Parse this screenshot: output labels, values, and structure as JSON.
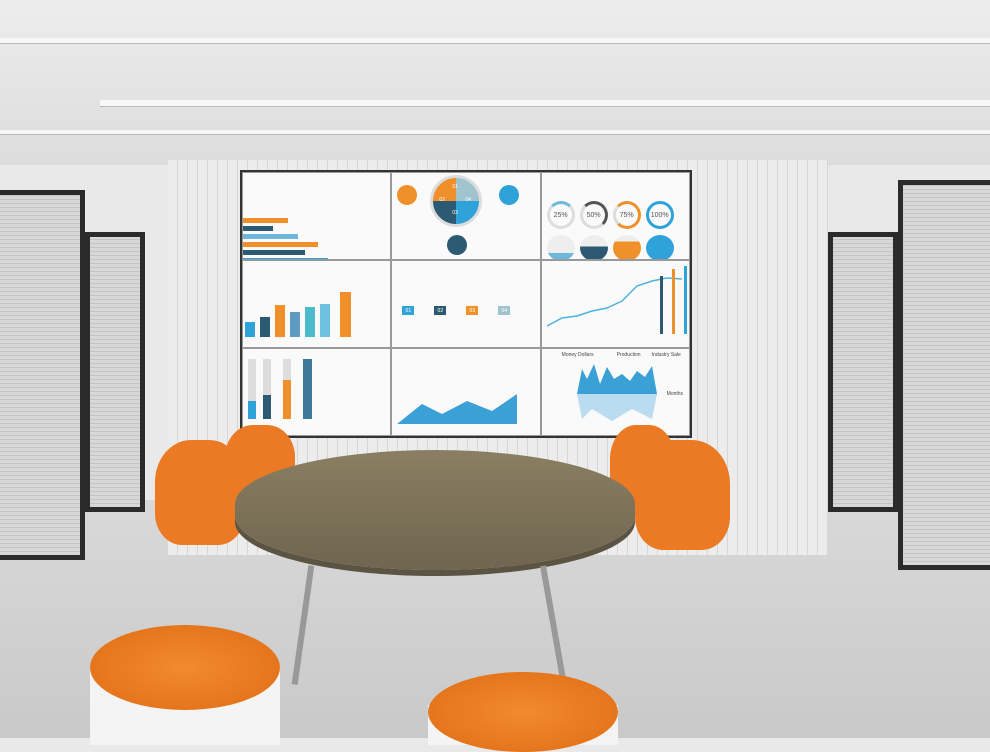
{
  "screen": {
    "percent_rings": [
      "25%",
      "50%",
      "75%",
      "100%"
    ],
    "pie_segments": [
      "01",
      "02",
      "03",
      "04"
    ],
    "step_labels": [
      "01",
      "02",
      "03",
      "04"
    ],
    "wave_chart": {
      "ylabel": "Money Dollars",
      "legend": [
        "Production",
        "Industry Sale"
      ],
      "xlabel": "Months"
    }
  },
  "colors": {
    "orange": "#f0902a",
    "blue": "#2fa3d9",
    "navy": "#2c5a73",
    "furniture_orange": "#ec7a25"
  }
}
